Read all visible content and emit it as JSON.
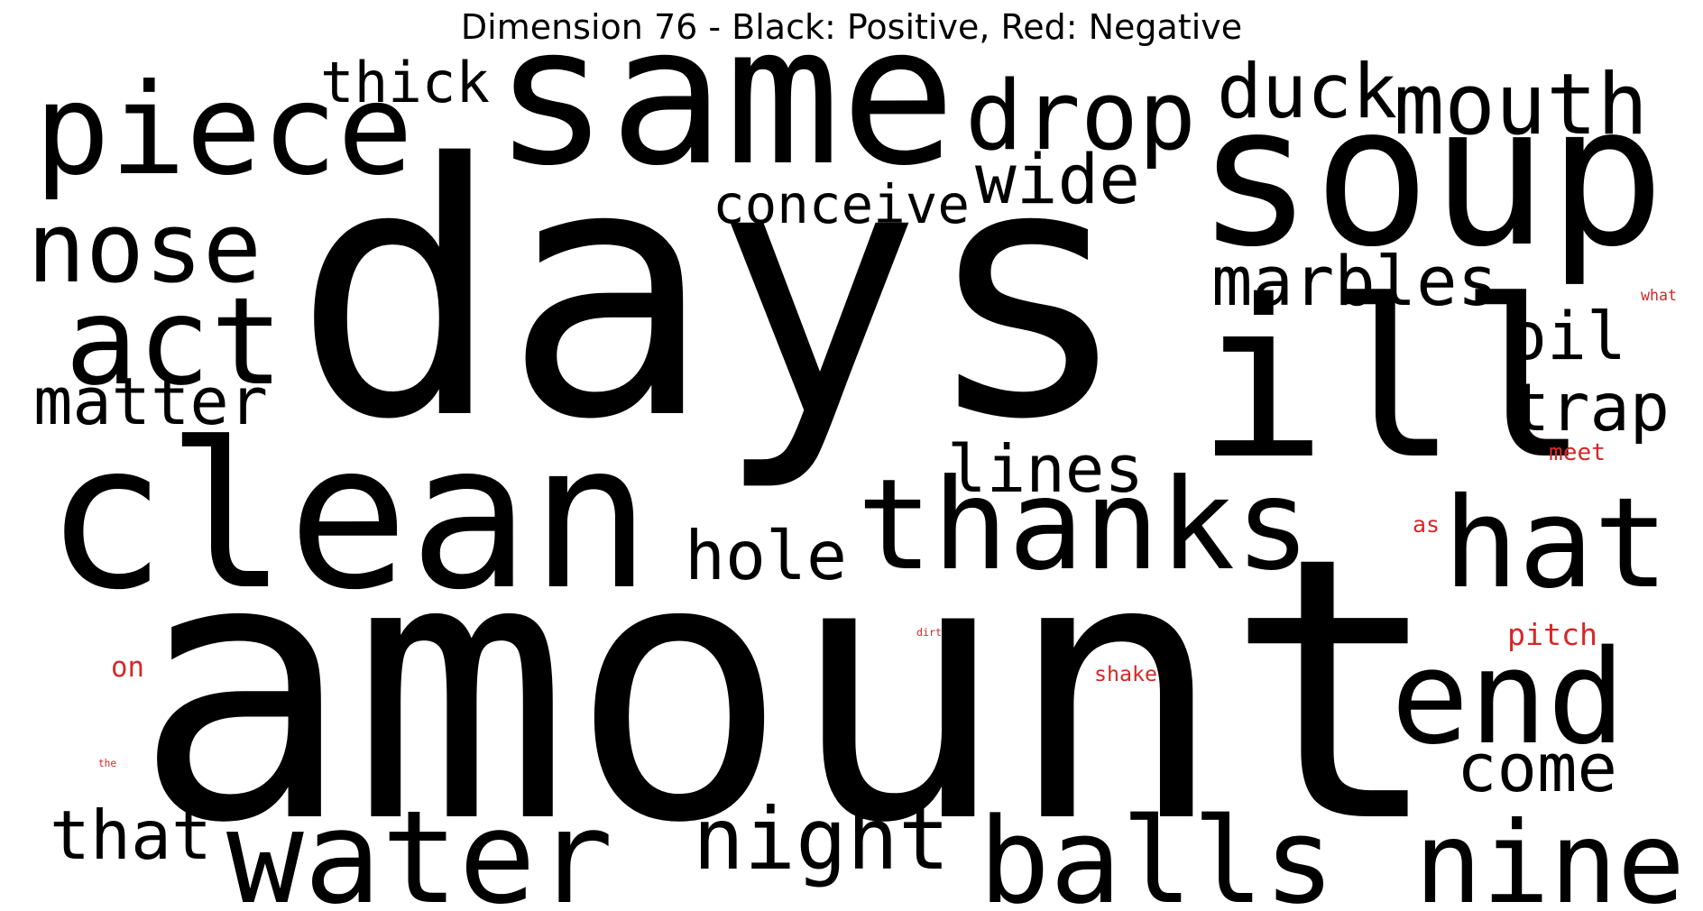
{
  "title": "Dimension 76 - Black: Positive, Red: Negative",
  "colors": {
    "positive": "#000000",
    "negative": "#d62728"
  },
  "words": [
    {
      "text": "days",
      "polarity": "positive"
    },
    {
      "text": "amount",
      "polarity": "positive"
    },
    {
      "text": "same",
      "polarity": "positive"
    },
    {
      "text": "soup",
      "polarity": "positive"
    },
    {
      "text": "ill",
      "polarity": "positive"
    },
    {
      "text": "clean",
      "polarity": "positive"
    },
    {
      "text": "piece",
      "polarity": "positive"
    },
    {
      "text": "thanks",
      "polarity": "positive"
    },
    {
      "text": "hat",
      "polarity": "positive"
    },
    {
      "text": "end",
      "polarity": "positive"
    },
    {
      "text": "water",
      "polarity": "positive"
    },
    {
      "text": "balls",
      "polarity": "positive"
    },
    {
      "text": "nine",
      "polarity": "positive"
    },
    {
      "text": "act",
      "polarity": "positive"
    },
    {
      "text": "drop",
      "polarity": "positive"
    },
    {
      "text": "mouth",
      "polarity": "positive"
    },
    {
      "text": "nose",
      "polarity": "positive"
    },
    {
      "text": "night",
      "polarity": "positive"
    },
    {
      "text": "duck",
      "polarity": "positive"
    },
    {
      "text": "lines",
      "polarity": "positive"
    },
    {
      "text": "marbles",
      "polarity": "positive"
    },
    {
      "text": "trap",
      "polarity": "positive"
    },
    {
      "text": "matter",
      "polarity": "positive"
    },
    {
      "text": "oil",
      "polarity": "positive"
    },
    {
      "text": "come",
      "polarity": "positive"
    },
    {
      "text": "that",
      "polarity": "positive"
    },
    {
      "text": "hole",
      "polarity": "positive"
    },
    {
      "text": "wide",
      "polarity": "positive"
    },
    {
      "text": "thick",
      "polarity": "positive"
    },
    {
      "text": "conceive",
      "polarity": "positive"
    },
    {
      "text": "pitch",
      "polarity": "negative"
    },
    {
      "text": "shake",
      "polarity": "negative"
    },
    {
      "text": "on",
      "polarity": "negative"
    },
    {
      "text": "meet",
      "polarity": "negative"
    },
    {
      "text": "as",
      "polarity": "negative"
    },
    {
      "text": "what",
      "polarity": "negative"
    },
    {
      "text": "dirt",
      "polarity": "negative"
    },
    {
      "text": "the",
      "polarity": "negative"
    }
  ]
}
